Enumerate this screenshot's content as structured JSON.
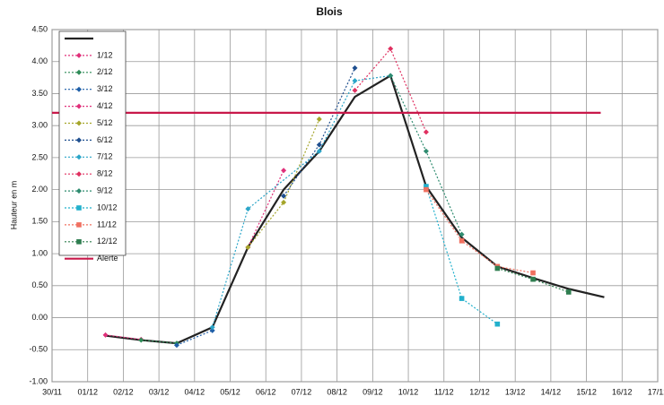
{
  "chart_data": {
    "type": "line",
    "title": "Blois",
    "y_label": "Hauteur en m",
    "xlim": [
      0,
      17
    ],
    "ylim": [
      -1,
      4.5
    ],
    "xticks": [
      {
        "value": 0,
        "label": "30/11"
      },
      {
        "value": 1,
        "label": "01/12"
      },
      {
        "value": 2,
        "label": "02/12"
      },
      {
        "value": 3,
        "label": "03/12"
      },
      {
        "value": 4,
        "label": "04/12"
      },
      {
        "value": 5,
        "label": "05/12"
      },
      {
        "value": 6,
        "label": "06/12"
      },
      {
        "value": 7,
        "label": "07/12"
      },
      {
        "value": 8,
        "label": "08/12"
      },
      {
        "value": 9,
        "label": "09/12"
      },
      {
        "value": 10,
        "label": "10/12"
      },
      {
        "value": 11,
        "label": "11/12"
      },
      {
        "value": 12,
        "label": "12/12"
      },
      {
        "value": 13,
        "label": "13/12"
      },
      {
        "value": 14,
        "label": "14/12"
      },
      {
        "value": 15,
        "label": "15/12"
      },
      {
        "value": 16,
        "label": "16/12"
      },
      {
        "value": 17,
        "label": "17/12"
      }
    ],
    "yticks": [
      {
        "value": 4.5,
        "label": "4.50"
      },
      {
        "value": 4,
        "label": "4.00"
      },
      {
        "value": 3.5,
        "label": "3.50"
      },
      {
        "value": 3,
        "label": "3.00"
      },
      {
        "value": 2.5,
        "label": "2.50"
      },
      {
        "value": 2,
        "label": "2.00"
      },
      {
        "value": 1.5,
        "label": "1.50"
      },
      {
        "value": 1,
        "label": "1.00"
      },
      {
        "value": 0.5,
        "label": "0.50"
      },
      {
        "value": 0,
        "label": "0.00"
      },
      {
        "value": -0.5,
        "label": "-0.50"
      },
      {
        "value": -1,
        "label": "-1.00"
      }
    ],
    "grid": true,
    "series": [
      {
        "color": "#222222",
        "style": "solid",
        "x": [
          1.5,
          2.5,
          3.5,
          4.5,
          5.5,
          6.5,
          7.5,
          8.5,
          9.5,
          10.5,
          11.5,
          12.5,
          13.5,
          14.5,
          15.5
        ],
        "values": [
          -0.28,
          -0.35,
          -0.4,
          -0.15,
          1.1,
          2.0,
          2.6,
          3.45,
          3.78,
          2.05,
          1.25,
          0.8,
          0.62,
          0.45,
          0.32
        ]
      },
      {
        "name": "1/12",
        "color": "#e0307a",
        "style": "dotted",
        "marker": "diamond",
        "x": [
          1.5,
          2.5
        ],
        "values": [
          -0.27,
          -0.34
        ]
      },
      {
        "name": "2/12",
        "color": "#2e8b57",
        "style": "dotted",
        "marker": "diamond",
        "x": [
          2.5,
          3.5
        ],
        "values": [
          -0.35,
          -0.4
        ]
      },
      {
        "name": "3/12",
        "color": "#1f5fa8",
        "style": "dotted",
        "marker": "diamond",
        "x": [
          3.5,
          4.5
        ],
        "values": [
          -0.43,
          -0.2
        ]
      },
      {
        "name": "4/12",
        "color": "#e0307a",
        "style": "dotted",
        "marker": "diamond",
        "x": [
          5.5,
          6.5
        ],
        "values": [
          1.1,
          2.3
        ]
      },
      {
        "name": "5/12",
        "color": "#a5a52a",
        "style": "dotted",
        "marker": "diamond",
        "x": [
          5.5,
          6.5,
          7.5
        ],
        "values": [
          1.1,
          1.8,
          3.1
        ]
      },
      {
        "name": "6/12",
        "color": "#1f4f8f",
        "style": "dotted",
        "marker": "diamond",
        "x": [
          6.5,
          7.5,
          8.5
        ],
        "values": [
          1.9,
          2.7,
          3.9
        ]
      },
      {
        "name": "7/12",
        "color": "#2aa5c8",
        "style": "dotted",
        "marker": "diamond",
        "x": [
          4.5,
          5.5,
          7.5,
          8.5,
          9.5
        ],
        "values": [
          -0.15,
          1.7,
          2.6,
          3.7,
          3.78
        ]
      },
      {
        "name": "8/12",
        "color": "#e03060",
        "style": "dotted",
        "marker": "diamond",
        "x": [
          8.5,
          9.5,
          10.5
        ],
        "values": [
          3.55,
          4.2,
          2.9
        ]
      },
      {
        "name": "9/12",
        "color": "#2e8b6f",
        "style": "dotted",
        "marker": "diamond",
        "x": [
          9.5,
          10.5,
          11.5
        ],
        "values": [
          3.78,
          2.6,
          1.3
        ]
      },
      {
        "name": "10/12",
        "color": "#22b0cc",
        "style": "dotted",
        "marker": "square",
        "x": [
          10.5,
          11.5,
          12.5
        ],
        "values": [
          2.05,
          0.3,
          -0.1
        ]
      },
      {
        "name": "11/12",
        "color": "#f07060",
        "style": "dotted",
        "marker": "square",
        "x": [
          10.5,
          11.5,
          12.5,
          13.5
        ],
        "values": [
          2.0,
          1.2,
          0.8,
          0.7
        ]
      },
      {
        "name": "12/12",
        "color": "#2e7d4f",
        "style": "dotted",
        "marker": "square",
        "x": [
          12.5,
          13.5,
          14.5
        ],
        "values": [
          0.77,
          0.6,
          0.4
        ]
      },
      {
        "name": "Alerte",
        "color": "#c8184a",
        "style": "thick",
        "x": [
          0,
          15.4
        ],
        "values": [
          3.2,
          3.2
        ]
      }
    ]
  }
}
